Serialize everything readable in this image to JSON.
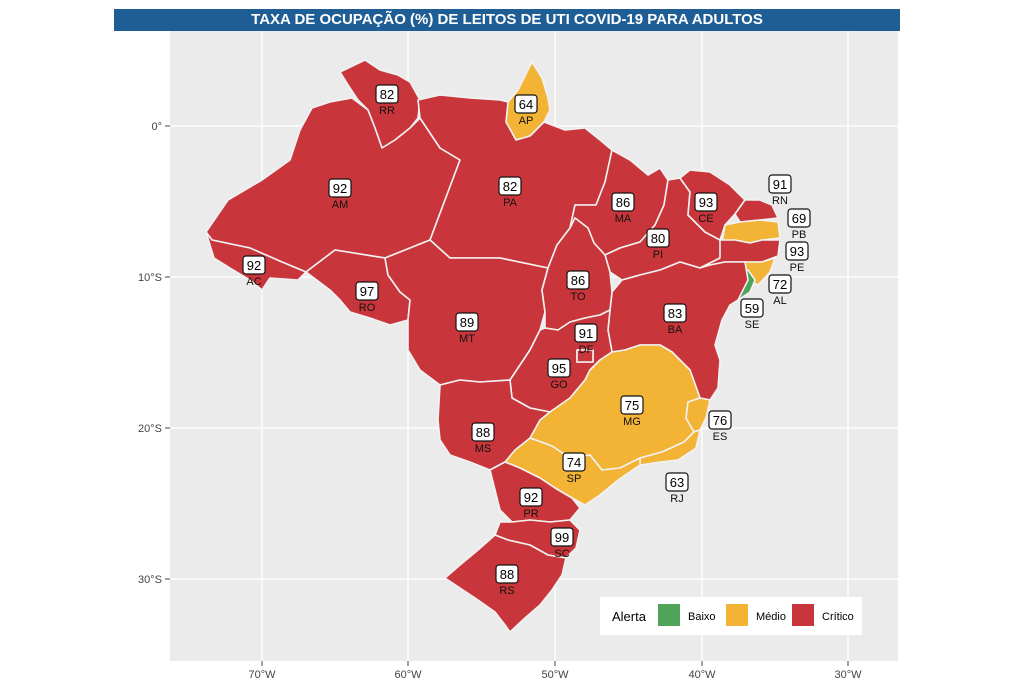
{
  "title": "TAXA DE OCUPAÇÃO (%) DE LEITOS DE UTI COVID-19 PARA ADULTOS",
  "colors": {
    "baixo": "#4ea359",
    "medio": "#f3b335",
    "critico": "#c8363b",
    "panel": "#ebebeb",
    "grid": "#ffffff",
    "title_bg": "#1f5d95"
  },
  "axes": {
    "x_ticks": [
      "70°W",
      "60°W",
      "50°W",
      "40°W",
      "30°W"
    ],
    "y_ticks": [
      "0°",
      "10°S",
      "20°S",
      "30°S"
    ]
  },
  "legend": {
    "title": "Alerta",
    "items": [
      {
        "label": "Baixo",
        "level": "baixo"
      },
      {
        "label": "Médio",
        "level": "medio"
      },
      {
        "label": "Crítico",
        "level": "critico"
      }
    ]
  },
  "states": [
    {
      "abbr": "RR",
      "value": "82",
      "level": "critico"
    },
    {
      "abbr": "AP",
      "value": "64",
      "level": "medio"
    },
    {
      "abbr": "AM",
      "value": "92",
      "level": "critico"
    },
    {
      "abbr": "PA",
      "value": "82",
      "level": "critico"
    },
    {
      "abbr": "MA",
      "value": "86",
      "level": "critico"
    },
    {
      "abbr": "CE",
      "value": "93",
      "level": "critico"
    },
    {
      "abbr": "RN",
      "value": "91",
      "level": "critico"
    },
    {
      "abbr": "PB",
      "value": "69",
      "level": "medio"
    },
    {
      "abbr": "PE",
      "value": "93",
      "level": "critico"
    },
    {
      "abbr": "PI",
      "value": "80",
      "level": "critico"
    },
    {
      "abbr": "AC",
      "value": "92",
      "level": "critico"
    },
    {
      "abbr": "RO",
      "value": "97",
      "level": "critico"
    },
    {
      "abbr": "TO",
      "value": "86",
      "level": "critico"
    },
    {
      "abbr": "AL",
      "value": "72",
      "level": "medio"
    },
    {
      "abbr": "SE",
      "value": "59",
      "level": "baixo"
    },
    {
      "abbr": "BA",
      "value": "83",
      "level": "critico"
    },
    {
      "abbr": "MT",
      "value": "89",
      "level": "critico"
    },
    {
      "abbr": "DF",
      "value": "91",
      "level": "critico"
    },
    {
      "abbr": "GO",
      "value": "95",
      "level": "critico"
    },
    {
      "abbr": "MG",
      "value": "75",
      "level": "medio"
    },
    {
      "abbr": "ES",
      "value": "76",
      "level": "medio"
    },
    {
      "abbr": "MS",
      "value": "88",
      "level": "critico"
    },
    {
      "abbr": "SP",
      "value": "74",
      "level": "medio"
    },
    {
      "abbr": "RJ",
      "value": "63",
      "level": "medio"
    },
    {
      "abbr": "PR",
      "value": "92",
      "level": "critico"
    },
    {
      "abbr": "SC",
      "value": "99",
      "level": "critico"
    },
    {
      "abbr": "RS",
      "value": "88",
      "level": "critico"
    }
  ]
}
